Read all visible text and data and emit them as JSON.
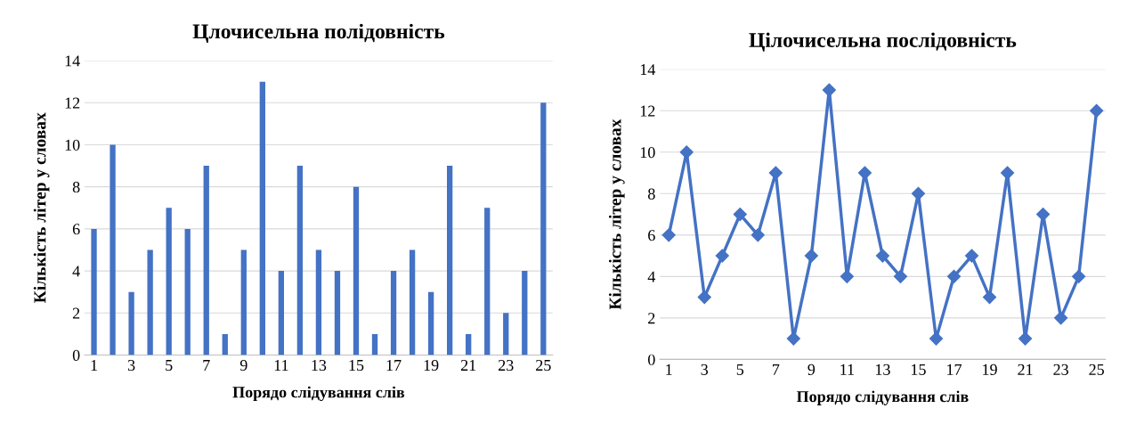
{
  "chart_data": [
    {
      "type": "bar",
      "title": "Цлочисельна полідовність",
      "xlabel": "Порядо слідування слів",
      "ylabel": "Кількість літер у словах",
      "categories": [
        "1",
        null,
        "3",
        null,
        "5",
        null,
        "7",
        null,
        "9",
        null,
        "11",
        null,
        "13",
        null,
        "15",
        null,
        "17",
        null,
        "19",
        null,
        "21",
        null,
        "23",
        null,
        "25"
      ],
      "series": [
        {
          "color": "#4472c4",
          "values": [
            6,
            10,
            3,
            5,
            7,
            6,
            9,
            1,
            5,
            13,
            4,
            9,
            5,
            4,
            8,
            1,
            4,
            5,
            3,
            9,
            1,
            7,
            2,
            4,
            12
          ]
        }
      ],
      "ylim": [
        0,
        14
      ],
      "yticks": [
        0,
        2,
        4,
        6,
        8,
        10,
        12,
        14
      ],
      "grid": "y"
    },
    {
      "type": "line",
      "title": "Цілочисельна послідовність",
      "xlabel": "Порядо слідування слів",
      "ylabel": "Кількість літер у словах",
      "categories": [
        "1",
        null,
        "3",
        null,
        "5",
        null,
        "7",
        null,
        "9",
        null,
        "11",
        null,
        "13",
        null,
        "15",
        null,
        "17",
        null,
        "19",
        null,
        "21",
        null,
        "23",
        null,
        "25"
      ],
      "series": [
        {
          "color": "#4472c4",
          "values": [
            6,
            10,
            3,
            5,
            7,
            6,
            9,
            1,
            5,
            13,
            4,
            9,
            5,
            4,
            8,
            1,
            4,
            5,
            3,
            9,
            1,
            7,
            2,
            4,
            12
          ]
        }
      ],
      "ylim": [
        0,
        14
      ],
      "yticks": [
        0,
        2,
        4,
        6,
        8,
        10,
        12,
        14
      ],
      "grid": "y",
      "marker": "diamond",
      "line_style": "solid"
    }
  ]
}
